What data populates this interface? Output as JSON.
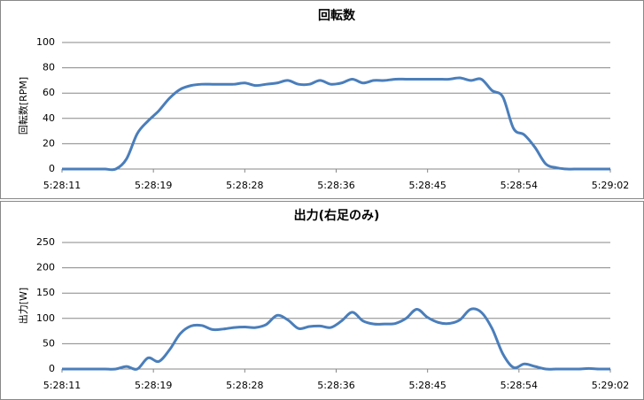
{
  "chart_data": [
    {
      "type": "line",
      "title": "回転数",
      "y_label": "回転数[RPM]",
      "x": [
        "5:28:11",
        "5:28:12",
        "5:28:13",
        "5:28:14",
        "5:28:15",
        "5:28:16",
        "5:28:17",
        "5:28:18",
        "5:28:19",
        "5:28:20",
        "5:28:21",
        "5:28:22",
        "5:28:23",
        "5:28:24",
        "5:28:25",
        "5:28:26",
        "5:28:27",
        "5:28:28",
        "5:28:29",
        "5:28:30",
        "5:28:31",
        "5:28:32",
        "5:28:33",
        "5:28:34",
        "5:28:35",
        "5:28:36",
        "5:28:37",
        "5:28:38",
        "5:28:39",
        "5:28:40",
        "5:28:41",
        "5:28:42",
        "5:28:43",
        "5:28:44",
        "5:28:45",
        "5:28:46",
        "5:28:47",
        "5:28:48",
        "5:28:49",
        "5:28:50",
        "5:28:51",
        "5:28:52",
        "5:28:53",
        "5:28:54",
        "5:28:55",
        "5:28:56",
        "5:28:57",
        "5:28:58",
        "5:28:59",
        "5:29:00",
        "5:29:01",
        "5:29:02"
      ],
      "xticks": [
        "5:28:11",
        "5:28:19",
        "5:28:28",
        "5:28:36",
        "5:28:45",
        "5:28:54",
        "5:29:02"
      ],
      "values": [
        0,
        0,
        0,
        0,
        0,
        0,
        8,
        28,
        38,
        46,
        56,
        63,
        66,
        67,
        67,
        67,
        67,
        68,
        66,
        67,
        68,
        70,
        67,
        67,
        70,
        67,
        68,
        71,
        68,
        70,
        70,
        71,
        71,
        71,
        71,
        71,
        71,
        72,
        70,
        71,
        62,
        57,
        32,
        27,
        17,
        4,
        1,
        0,
        0,
        0,
        0,
        0
      ],
      "color": "#4a7ebb",
      "ylim": [
        0,
        100
      ],
      "yticks": [
        0,
        20,
        40,
        60,
        80,
        100
      ],
      "grid": true
    },
    {
      "type": "line",
      "title": "出力(右足のみ)",
      "y_label": "出力[W]",
      "x": [
        "5:28:11",
        "5:28:12",
        "5:28:13",
        "5:28:14",
        "5:28:15",
        "5:28:16",
        "5:28:17",
        "5:28:18",
        "5:28:19",
        "5:28:20",
        "5:28:21",
        "5:28:22",
        "5:28:23",
        "5:28:24",
        "5:28:25",
        "5:28:26",
        "5:28:27",
        "5:28:28",
        "5:28:29",
        "5:28:30",
        "5:28:31",
        "5:28:32",
        "5:28:33",
        "5:28:34",
        "5:28:35",
        "5:28:36",
        "5:28:37",
        "5:28:38",
        "5:28:39",
        "5:28:40",
        "5:28:41",
        "5:28:42",
        "5:28:43",
        "5:28:44",
        "5:28:45",
        "5:28:46",
        "5:28:47",
        "5:28:48",
        "5:28:49",
        "5:28:50",
        "5:28:51",
        "5:28:52",
        "5:28:53",
        "5:28:54",
        "5:28:55",
        "5:28:56",
        "5:28:57",
        "5:28:58",
        "5:28:59",
        "5:29:00",
        "5:29:01",
        "5:29:02"
      ],
      "xticks": [
        "5:28:11",
        "5:28:19",
        "5:28:28",
        "5:28:36",
        "5:28:45",
        "5:28:54",
        "5:29:02"
      ],
      "values": [
        0,
        0,
        0,
        0,
        0,
        0,
        5,
        0,
        22,
        15,
        38,
        70,
        85,
        86,
        78,
        79,
        82,
        83,
        82,
        88,
        106,
        97,
        80,
        84,
        85,
        82,
        95,
        112,
        95,
        89,
        89,
        90,
        100,
        118,
        102,
        92,
        90,
        97,
        118,
        112,
        80,
        30,
        3,
        10,
        5,
        0,
        0,
        0,
        0,
        1,
        0,
        0
      ],
      "color": "#4a7ebb",
      "ylim": [
        0,
        250
      ],
      "yticks": [
        0,
        50,
        100,
        150,
        200,
        250
      ],
      "grid": true
    }
  ]
}
